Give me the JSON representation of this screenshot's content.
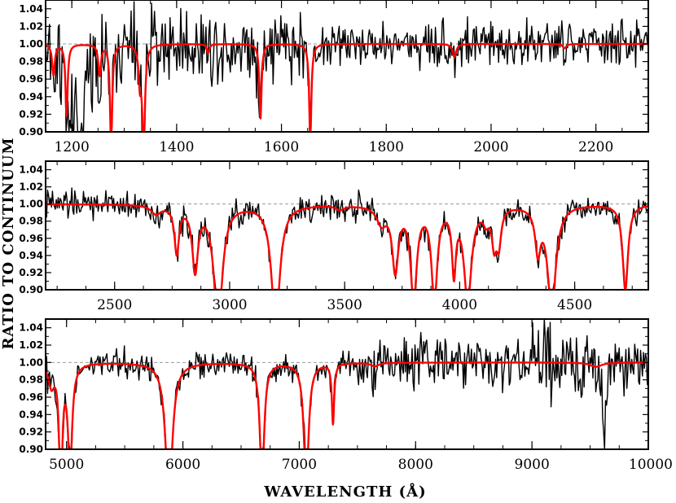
{
  "chart_data": [
    {
      "type": "line",
      "panel": "top",
      "xlim": [
        1150,
        2300
      ],
      "ylim": [
        0.9,
        1.05
      ],
      "xticks": [
        1200,
        1400,
        1600,
        1800,
        2000,
        2200
      ],
      "xtick_labels": [
        "1200",
        "1400",
        "1600",
        "1800",
        "2000",
        "2200"
      ],
      "xtick_label_position": "below",
      "yticks": [
        0.9,
        0.92,
        0.94,
        0.96,
        0.98,
        1.0,
        1.02,
        1.04
      ],
      "ytick_labels": [
        "0.90",
        "0.92",
        "0.94",
        "0.96",
        "0.98",
        "1.00",
        "1.02",
        "1.04"
      ],
      "reference_line": 1.0,
      "series": [
        {
          "role": "observed ratio (black)",
          "color": "#000000",
          "noise_segments": [
            [
              1150,
              1250,
              0.028
            ],
            [
              1250,
              1650,
              0.022
            ],
            [
              1650,
              2300,
              0.013
            ]
          ],
          "absorption_features": [
            [
              1198,
              0.91,
              4
            ],
            [
              1215,
              0.86,
              8
            ]
          ]
        },
        {
          "role": "model ratio (red)",
          "color": "#ff0000",
          "absorption_lines": [
            [
              1165,
              0.965,
              3
            ],
            [
              1190,
              0.918,
              2.5
            ],
            [
              1253,
              0.965,
              3
            ],
            [
              1275,
              0.88,
              2.5
            ],
            [
              1330,
              0.96,
              3
            ],
            [
              1337,
              0.88,
              3
            ],
            [
              1460,
              0.99,
              3
            ],
            [
              1560,
              0.915,
              2.5
            ],
            [
              1655,
              0.89,
              2.5
            ],
            [
              1930,
              0.985,
              4
            ],
            [
              2140,
              0.995,
              4
            ]
          ]
        }
      ]
    },
    {
      "type": "line",
      "panel": "middle",
      "xlim": [
        2200,
        4820
      ],
      "ylim": [
        0.9,
        1.05
      ],
      "xticks": [
        2500,
        3000,
        3500,
        4000,
        4500
      ],
      "xtick_labels": [
        "2500",
        "3000",
        "3500",
        "4000",
        "4500"
      ],
      "xtick_label_position": "below",
      "yticks": [
        0.9,
        0.92,
        0.94,
        0.96,
        0.98,
        1.0,
        1.02,
        1.04
      ],
      "ytick_labels": [
        "0.90",
        "0.92",
        "0.94",
        "0.96",
        "0.98",
        "1.00",
        "1.02",
        "1.04"
      ],
      "reference_line": 1.0,
      "series": [
        {
          "role": "observed ratio (black)",
          "color": "#000000",
          "noise_segments": [
            [
              2200,
              3600,
              0.008
            ],
            [
              3600,
              4820,
              0.007
            ]
          ]
        },
        {
          "role": "model ratio (red)",
          "color": "#ff0000",
          "absorption_lines": [
            [
              2680,
              0.99,
              25
            ],
            [
              2770,
              0.945,
              12
            ],
            [
              2850,
              0.925,
              15
            ],
            [
              2950,
              0.86,
              22
            ],
            [
              3200,
              0.86,
              22
            ],
            [
              3480,
              0.995,
              20
            ],
            [
              3660,
              0.98,
              25
            ],
            [
              3720,
              0.925,
              16
            ],
            [
              3800,
              0.89,
              16
            ],
            [
              3890,
              0.89,
              15
            ],
            [
              3975,
              0.925,
              10
            ],
            [
              4035,
              0.89,
              20
            ],
            [
              4115,
              0.985,
              15
            ],
            [
              4150,
              0.958,
              12
            ],
            [
              4170,
              0.958,
              12
            ],
            [
              4340,
              0.95,
              14
            ],
            [
              4400,
              0.88,
              22
            ],
            [
              4720,
              0.9,
              14
            ]
          ]
        }
      ]
    },
    {
      "type": "line",
      "panel": "bottom",
      "xlim": [
        4820,
        10000
      ],
      "ylim": [
        0.9,
        1.05
      ],
      "xticks": [
        5000,
        6000,
        7000,
        8000,
        9000,
        10000
      ],
      "xtick_labels": [
        "5000",
        "6000",
        "7000",
        "8000",
        "9000",
        "10000"
      ],
      "xtick_label_position": "below",
      "yticks": [
        0.9,
        0.92,
        0.94,
        0.96,
        0.98,
        1.0,
        1.02,
        1.04
      ],
      "ytick_labels": [
        "0.90",
        "0.92",
        "0.94",
        "0.96",
        "0.98",
        "1.00",
        "1.02",
        "1.04"
      ],
      "reference_line": 1.0,
      "xlabel": "WAVELENGTH (Å)",
      "series": [
        {
          "role": "observed ratio (black)",
          "color": "#000000",
          "noise_segments": [
            [
              4820,
              7500,
              0.008
            ],
            [
              7500,
              9000,
              0.014
            ],
            [
              9000,
              10000,
              0.022
            ]
          ],
          "absorption_features": [
            [
              9620,
              0.93,
              20
            ]
          ]
        },
        {
          "role": "model ratio (red)",
          "color": "#ff0000",
          "absorption_lines": [
            [
              4870,
              0.975,
              30
            ],
            [
              4950,
              0.84,
              15
            ],
            [
              5030,
              0.88,
              22
            ],
            [
              5880,
              0.84,
              35
            ],
            [
              6680,
              0.86,
              22
            ],
            [
              7060,
              0.86,
              25
            ],
            [
              7290,
              0.93,
              12
            ],
            [
              7650,
              0.996,
              40
            ],
            [
              9550,
              0.995,
              60
            ]
          ]
        }
      ]
    }
  ],
  "ylabel": "RATIO TO CONTINUUM"
}
